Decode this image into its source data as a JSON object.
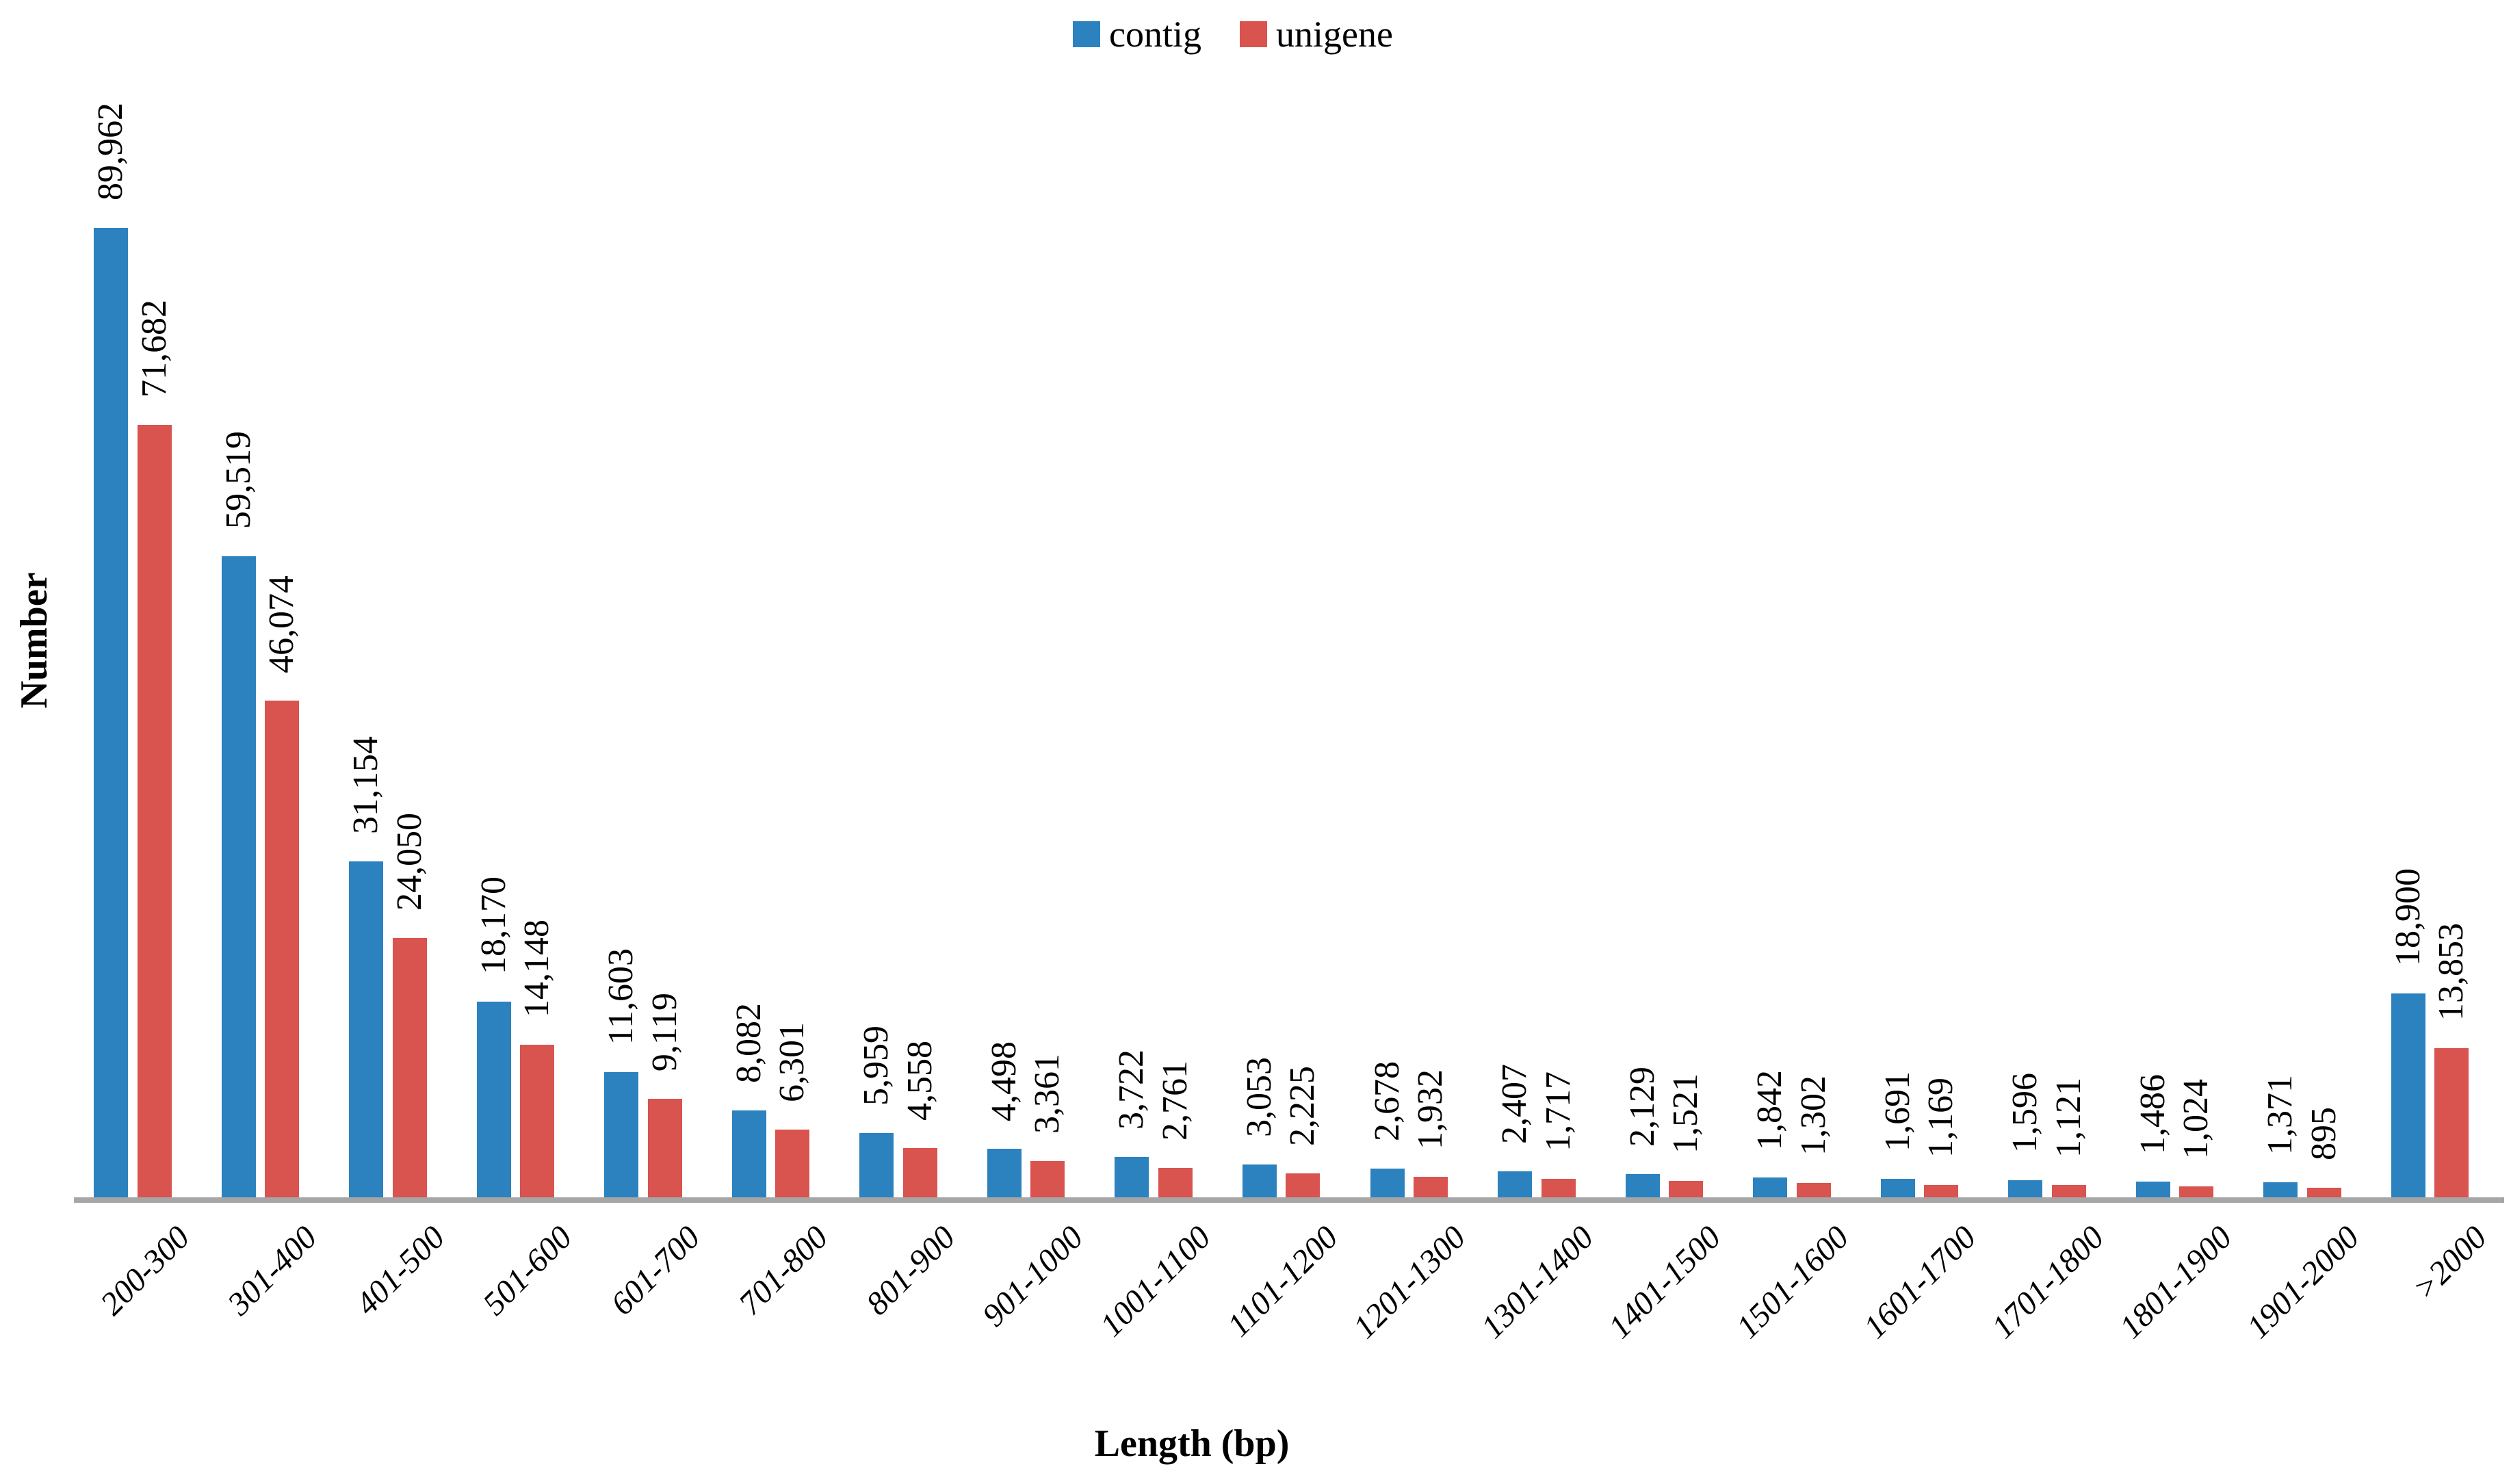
{
  "y_axis_title": "Number",
  "x_axis_title": "Length (bp)",
  "legend": {
    "items": [
      {
        "label": "contig",
        "color": "#2b82bf"
      },
      {
        "label": "unigene",
        "color": "#d9534f"
      }
    ]
  },
  "colors": {
    "contig_blue": "#2b82bf",
    "unigene_red": "#d9534f",
    "axis_gray": "#a6a6a6"
  },
  "chart_data": {
    "type": "bar",
    "title": "",
    "xlabel": "Length (bp)",
    "ylabel": "Number",
    "categories": [
      "200-300",
      "301-400",
      "401-500",
      "501-600",
      "601-700",
      "701-800",
      "801-900",
      "901-1000",
      "1001-1100",
      "1101-1200",
      "1201-1300",
      "1301-1400",
      "1401-1500",
      "1501-1600",
      "1601-1700",
      "1701-1800",
      "1801-1900",
      "1901-2000",
      ">2000"
    ],
    "series": [
      {
        "name": "contig",
        "color": "#2b82bf",
        "values": [
          89962,
          59519,
          31154,
          18170,
          11603,
          8082,
          5959,
          4498,
          3722,
          3053,
          2678,
          2407,
          2129,
          1842,
          1691,
          1596,
          1486,
          1371,
          18900
        ]
      },
      {
        "name": "unigene",
        "color": "#d9534f",
        "values": [
          71682,
          46074,
          24050,
          14148,
          9119,
          6301,
          4558,
          3361,
          2761,
          2225,
          1932,
          1717,
          1521,
          1302,
          1169,
          1121,
          1024,
          895,
          13853
        ]
      }
    ],
    "data_labels_shown": true,
    "value_axis_shown": false,
    "ylim": [
      0,
      95000
    ],
    "grid": false,
    "legend_position": "top-center"
  }
}
